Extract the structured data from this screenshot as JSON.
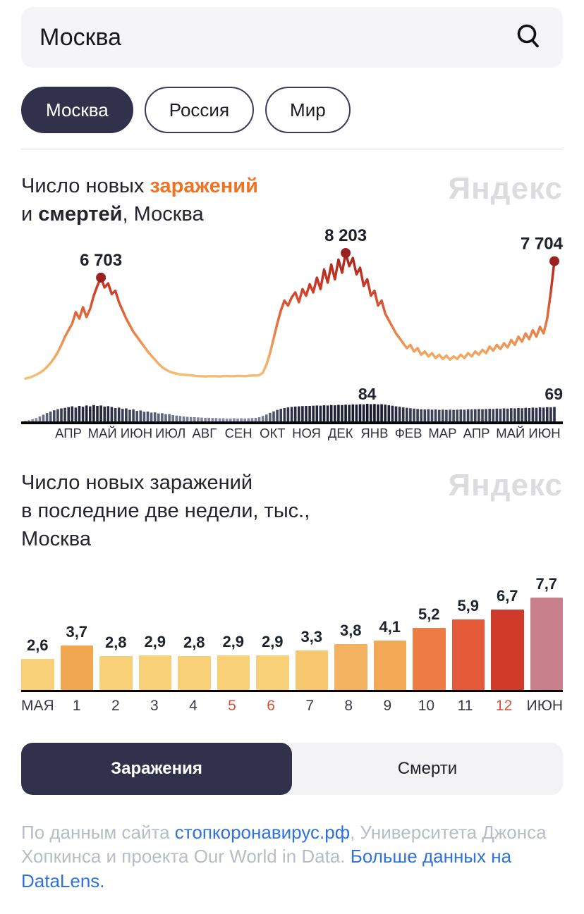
{
  "search": {
    "value": "Москва"
  },
  "filters": [
    {
      "name": "moscow",
      "label": "Москва",
      "selected": true
    },
    {
      "name": "russia",
      "label": "Россия",
      "selected": false
    },
    {
      "name": "world",
      "label": "Мир",
      "selected": false
    }
  ],
  "watermark": "Яндекс",
  "section1": {
    "line1_prefix": "Число новых ",
    "line1_highlight": "заражений",
    "line2_prefix": "и ",
    "line2_bold": "смертей",
    "line2_rest": ", Москва"
  },
  "section2": {
    "line1": "Число новых заражений",
    "line2": "в последние две недели, тыс.,",
    "line3": "Москва"
  },
  "toggle": {
    "options": [
      {
        "name": "infections",
        "label": "Заражения",
        "selected": true
      },
      {
        "name": "deaths",
        "label": "Смерти",
        "selected": false
      }
    ]
  },
  "footer": {
    "segments": [
      {
        "name": "source-text-1",
        "text": "По данным сайта ",
        "link": false
      },
      {
        "name": "stopcoronavirus-link",
        "text": "стопкоронавирус.рф",
        "link": true
      },
      {
        "name": "source-text-2",
        "text": ", Университета Джонса Хопкинса и проекта Our World in Data.  ",
        "link": false
      },
      {
        "name": "datalens-link",
        "text": "Больше данных на DataLens.",
        "link": true
      }
    ]
  },
  "colors": {
    "accent_dark": "#32314b",
    "title_orange": "#ee7425",
    "watermark_gray": "#dcdce0",
    "tick_red": "#d8503a",
    "link_blue": "#2f72d9",
    "footer_gray": "#b7bcc6",
    "dot": "#992220",
    "deaths_low": "#9ba1bf",
    "deaths_high": "#14162a",
    "line_gradient": [
      "#a8231c",
      "#c93b29",
      "#e4703f",
      "#f0a55e",
      "#f4ca80"
    ]
  },
  "chart_data": [
    {
      "type": "line",
      "title": "Число новых заражений и смертей, Москва",
      "x_tick_labels": [
        "АПР",
        "МАЙ",
        "ИЮН",
        "ИЮЛ",
        "АВГ",
        "СЕН",
        "ОКТ",
        "НОЯ",
        "ДЕК",
        "ЯНВ",
        "ФЕВ",
        "МАР",
        "АПР",
        "МАЙ",
        "ИЮН"
      ],
      "y_max_infections": 8203,
      "y_max_deaths": 84,
      "series": [
        {
          "name": "новые заражения",
          "type": "line",
          "values": [
            550,
            600,
            680,
            780,
            900,
            1050,
            1250,
            1500,
            1800,
            2150,
            2600,
            3100,
            3500,
            3900,
            4600,
            4200,
            4900,
            4300,
            4800,
            5600,
            6200,
            6703,
            6100,
            6350,
            5700,
            5900,
            5200,
            4700,
            4200,
            3800,
            3400,
            3100,
            2800,
            2500,
            2200,
            1950,
            1700,
            1450,
            1250,
            1100,
            980,
            900,
            850,
            800,
            780,
            760,
            740,
            720,
            700,
            690,
            680,
            690,
            700,
            690,
            680,
            700,
            710,
            690,
            700,
            720,
            710,
            700,
            720,
            740,
            730,
            750,
            900,
            1400,
            2100,
            3000,
            3900,
            4700,
            5300,
            5000,
            5500,
            5800,
            5200,
            6000,
            5600,
            6300,
            5800,
            6700,
            6000,
            7200,
            6400,
            7500,
            6600,
            7800,
            7000,
            8203,
            7400,
            7900,
            6900,
            7300,
            6200,
            6600,
            5600,
            5900,
            5000,
            5300,
            4500,
            4100,
            3700,
            3300,
            3000,
            2700,
            2400,
            2600,
            2200,
            2400,
            2000,
            2200,
            1900,
            2100,
            1800,
            2000,
            1750,
            1950,
            1700,
            1900,
            1750,
            2000,
            1800,
            2100,
            1900,
            2200,
            2000,
            2300,
            2100,
            2500,
            2250,
            2600,
            2350,
            2700,
            2450,
            2900,
            2600,
            3100,
            2800,
            3300,
            2950,
            3500,
            3100,
            3700,
            3300,
            4200,
            5800,
            7704
          ],
          "annotations": [
            {
              "index": 21,
              "label": "6 703"
            },
            {
              "index": 89,
              "label": "8 203"
            },
            {
              "index": 147,
              "label": "7 704"
            }
          ]
        },
        {
          "name": "новые смерти",
          "type": "bar",
          "values": [
            3,
            6,
            10,
            16,
            24,
            32,
            40,
            47,
            53,
            58,
            62,
            65,
            68,
            72,
            66,
            74,
            70,
            76,
            72,
            78,
            74,
            76,
            71,
            73,
            69,
            64,
            66,
            60,
            62,
            55,
            57,
            50,
            52,
            46,
            47,
            42,
            43,
            38,
            39,
            34,
            35,
            30,
            28,
            26,
            24,
            22,
            21,
            20,
            19,
            18,
            17,
            17,
            16,
            16,
            15,
            15,
            14,
            14,
            15,
            14,
            15,
            14,
            15,
            16,
            17,
            20,
            26,
            33,
            41,
            48,
            55,
            60,
            64,
            67,
            69,
            71,
            72,
            73,
            74,
            74,
            75,
            76,
            75,
            77,
            76,
            78,
            77,
            79,
            78,
            80,
            79,
            81,
            80,
            82,
            81,
            84,
            82,
            83,
            81,
            82,
            80,
            77,
            75,
            72,
            70,
            67,
            65,
            63,
            61,
            59,
            58,
            57,
            58,
            56,
            57,
            55,
            56,
            55,
            56,
            55,
            56,
            57,
            56,
            58,
            57,
            58,
            59,
            58,
            59,
            60,
            59,
            61,
            60,
            62,
            61,
            63,
            62,
            64,
            63,
            65,
            64,
            66,
            65,
            67,
            66,
            68,
            67,
            69
          ],
          "annotations": [
            {
              "index": 95,
              "label": "84"
            },
            {
              "index": 147,
              "label": "69"
            }
          ]
        }
      ]
    },
    {
      "type": "bar",
      "title": "Число новых заражений в последние две недели, тыс., Москва",
      "categories": [
        "МАЯ",
        "1",
        "2",
        "3",
        "4",
        "5",
        "6",
        "7",
        "8",
        "9",
        "10",
        "11",
        "12",
        "ИЮН"
      ],
      "values": [
        2.6,
        3.7,
        2.8,
        2.9,
        2.8,
        2.9,
        2.9,
        3.3,
        3.8,
        4.1,
        5.2,
        5.9,
        6.7,
        7.7
      ],
      "value_labels": [
        "2,6",
        "3,7",
        "2,8",
        "2,9",
        "2,8",
        "2,9",
        "2,9",
        "3,3",
        "3,8",
        "4,1",
        "5,2",
        "5,9",
        "6,7",
        "7,7"
      ],
      "bar_colors": [
        "#f8d078",
        "#f1a74f",
        "#f8d078",
        "#f8d078",
        "#f8d078",
        "#f8d078",
        "#f8d078",
        "#f6c76f",
        "#f3b260",
        "#f2a854",
        "#ee7d45",
        "#e55a39",
        "#d03a28",
        "#c9808d"
      ],
      "red_tick_indices": [
        5,
        6,
        12
      ],
      "ylim": [
        0,
        7.7
      ]
    }
  ]
}
